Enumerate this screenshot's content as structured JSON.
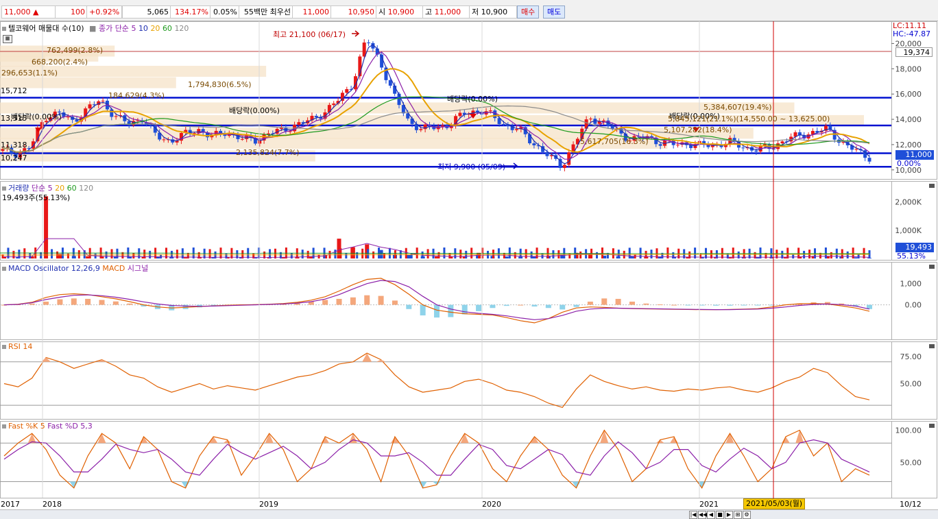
{
  "quote": {
    "price": "11,000",
    "change_arrow": "▲",
    "change": "100",
    "change_pct": "+0.92%",
    "volume": "5,065",
    "volume_ratio": "134.17%",
    "turnover": "0.05%",
    "amount": "55백만",
    "best_label": "최우선",
    "best_ask": "11,000",
    "best_bid": "10,950",
    "open_label": "시",
    "open": "10,900",
    "high_label": "고",
    "high": "11,000",
    "low_label": "저",
    "low": "10,900",
    "buy_label": "매수",
    "sell_label": "매도"
  },
  "price_panel": {
    "legend": [
      "텔코웨어 매물대 수(10)",
      "종가 단순",
      "5",
      "10",
      "20",
      "60",
      "120"
    ],
    "lc": "LC:11.11",
    "hc": "HC:-47.87",
    "max_label": "최고 21,100 (06/17)",
    "min_label": "최저 9,900 (05/09)",
    "dividend_label": "배당락(0.00%)",
    "left_prices": [
      "15,712",
      "13,515",
      "11,318",
      "10,247"
    ],
    "vp_labels": [
      "762,499(2.8%)",
      "668,200(2.4%)",
      "296,653(1.1%)",
      "1,794,830(6.5%)",
      "184,629(4.3%)",
      "5,384,607(19.4%)",
      "5,845,121(21.1%)(14,550.00 ~ 13,625.00)",
      "5,107,282(18.4%)",
      "2,135,824(7.7%)",
      "5,617,705(16.3%)"
    ],
    "right_top_value": "19,374",
    "current_value": "11,000",
    "current_pct": "0.00%",
    "axis_ticks": [
      "20,000",
      "18,000",
      "16,000",
      "14,000",
      "12,000",
      "10,000"
    ]
  },
  "volume_panel": {
    "legend": [
      "거래량",
      "단순",
      "5",
      "20",
      "60",
      "120"
    ],
    "value_label": "19,493주(55.13%)",
    "axis_ticks": [
      "2,000K",
      "1,000K"
    ],
    "current_value": "19,493",
    "current_pct": "55.13%"
  },
  "macd_panel": {
    "legend": [
      "MACD Oscillator 12,26,9",
      "MACD",
      "시그널"
    ],
    "axis_ticks": [
      "1,000",
      "0.00"
    ]
  },
  "rsi_panel": {
    "legend": [
      "RSI 14"
    ],
    "axis_ticks": [
      "75.00",
      "50.00"
    ]
  },
  "stoch_panel": {
    "legend": [
      "Fast %K 5",
      "Fast %D 5,3"
    ],
    "axis_ticks": [
      "100.00",
      "50.00"
    ]
  },
  "x_axis": {
    "labels": [
      "2017",
      "2018",
      "2019",
      "2020",
      "2021"
    ],
    "cursor_date": "2021/05/03(월)",
    "right_label": "10/12"
  },
  "colors": {
    "up": "#e81818",
    "down": "#1f4fd8",
    "ma5": "#1f2fb0",
    "ma10": "#8b1fa8",
    "ma20": "#e8a200",
    "ma60": "#1e9a1e",
    "ma120": "#8a8a8a",
    "orange_line": "#e06000",
    "band_fill": "#f6e3c8"
  },
  "chart_data": [
    {
      "type": "candlestick",
      "title": "텔코웨어 매물대 수(10)",
      "ylim": [
        9500,
        21000
      ],
      "x_range": [
        "2017",
        "2021-10-12"
      ],
      "price_series": [
        11500,
        11300,
        11800,
        14200,
        14500,
        13800,
        14800,
        15500,
        14300,
        13600,
        14100,
        12600,
        12300,
        12800,
        13200,
        12600,
        13000,
        12500,
        12300,
        12900,
        13100,
        13600,
        13900,
        14600,
        15500,
        16800,
        20400,
        18600,
        15800,
        13900,
        13200,
        13400,
        13600,
        14500,
        14700,
        14300,
        13500,
        13100,
        12100,
        11100,
        10300,
        12300,
        14200,
        13700,
        13000,
        12400,
        12600,
        12200,
        12000,
        12100,
        11900,
        12000,
        12200,
        11800,
        11600,
        11800,
        12400,
        12700,
        13000,
        13200,
        12200,
        11500,
        11000
      ],
      "max": {
        "value": 21100,
        "date": "06/17"
      },
      "min": {
        "value": 9900,
        "date": "05/09"
      },
      "horizontal_levels": [
        15712,
        13515,
        11318,
        10247
      ],
      "volume_profile": [
        {
          "volume": "762,499",
          "pct": 2.8
        },
        {
          "volume": "668,200",
          "pct": 2.4
        },
        {
          "volume": "296,653",
          "pct": 1.1
        },
        {
          "volume": "1,794,830",
          "pct": 6.5
        },
        {
          "volume": "184,629",
          "pct": 4.3
        },
        {
          "volume": "5,384,607",
          "pct": 19.4
        },
        {
          "volume": "5,845,121",
          "pct": 21.1,
          "range": "14,550.00 ~ 13,625.00"
        },
        {
          "volume": "5,107,282",
          "pct": 18.4
        },
        {
          "volume": "5,617,705",
          "pct": 16.3
        },
        {
          "volume": "2,135,824",
          "pct": 7.7
        }
      ],
      "last": 11000
    },
    {
      "type": "bar",
      "title": "거래량",
      "ylim": [
        0,
        2400000
      ],
      "values": [
        60000,
        50000,
        80000,
        2200000,
        160000,
        90000,
        80000,
        70000,
        60000,
        70000,
        50000,
        60000,
        50000,
        40000,
        45000,
        40000,
        50000,
        40000,
        35000,
        40000,
        50000,
        60000,
        80000,
        120000,
        700000,
        400000,
        500000,
        300000,
        150000,
        120000,
        80000,
        70000,
        60000,
        80000,
        200000,
        90000,
        70000,
        60000,
        80000,
        90000,
        150000,
        200000,
        160000,
        100000,
        80000,
        70000,
        60000,
        50000,
        50000,
        50000,
        45000,
        45000,
        50000,
        45000,
        40000,
        45000,
        60000,
        70000,
        90000,
        80000,
        60000,
        40000,
        19493
      ],
      "last": 19493
    },
    {
      "type": "line",
      "title": "MACD Oscillator 12,26,9",
      "ylim": [
        -1500,
        1700
      ],
      "oscillator": [
        0,
        20,
        60,
        150,
        260,
        300,
        280,
        230,
        160,
        60,
        -80,
        -200,
        -260,
        -200,
        -120,
        -50,
        0,
        20,
        30,
        40,
        60,
        100,
        150,
        230,
        280,
        350,
        450,
        420,
        200,
        -200,
        -500,
        -600,
        -580,
        -450,
        -300,
        -150,
        -50,
        0,
        -80,
        -150,
        -220,
        -100,
        150,
        300,
        280,
        150,
        60,
        20,
        0,
        -20,
        -30,
        -40,
        -40,
        -30,
        -20,
        -10,
        20,
        60,
        120,
        130,
        60,
        -80,
        -200
      ],
      "macd": [
        0,
        30,
        120,
        350,
        480,
        520,
        480,
        380,
        280,
        150,
        0,
        -100,
        -150,
        -120,
        -80,
        -50,
        -20,
        0,
        10,
        30,
        60,
        120,
        220,
        380,
        650,
        950,
        1200,
        1250,
        950,
        500,
        0,
        -250,
        -350,
        -420,
        -450,
        -480,
        -600,
        -750,
        -850,
        -650,
        -350,
        -150,
        -100,
        -120,
        -160,
        -180,
        -190,
        -200,
        -210,
        -220,
        -230,
        -230,
        -220,
        -200,
        -180,
        -100,
        0,
        50,
        60,
        40,
        -50,
        -150,
        -300
      ],
      "signal": [
        0,
        20,
        100,
        250,
        360,
        450,
        470,
        430,
        360,
        260,
        140,
        40,
        -30,
        -60,
        -70,
        -60,
        -40,
        -20,
        0,
        20,
        40,
        80,
        150,
        270,
        480,
        750,
        1000,
        1150,
        1100,
        850,
        400,
        0,
        -200,
        -330,
        -400,
        -450,
        -520,
        -620,
        -700,
        -650,
        -500,
        -300,
        -200,
        -160,
        -160,
        -170,
        -180,
        -190,
        -200,
        -210,
        -220,
        -225,
        -225,
        -215,
        -200,
        -160,
        -100,
        -30,
        20,
        40,
        10,
        -60,
        -200
      ]
    },
    {
      "type": "line",
      "title": "RSI 14",
      "ylim": [
        20,
        85
      ],
      "values": [
        50,
        47,
        55,
        74,
        70,
        64,
        68,
        72,
        66,
        58,
        55,
        47,
        42,
        46,
        50,
        45,
        48,
        46,
        44,
        48,
        52,
        56,
        58,
        62,
        68,
        70,
        78,
        72,
        58,
        47,
        42,
        44,
        46,
        52,
        54,
        50,
        44,
        42,
        38,
        32,
        28,
        45,
        58,
        52,
        48,
        45,
        47,
        44,
        43,
        45,
        44,
        46,
        47,
        44,
        42,
        46,
        52,
        56,
        64,
        60,
        48,
        38,
        35
      ],
      "reference_lines": [
        70,
        30
      ]
    },
    {
      "type": "line",
      "title": "Fast %K 5 / Fast %D 5,3",
      "ylim": [
        -3,
        108
      ],
      "k": [
        60,
        80,
        95,
        70,
        30,
        10,
        60,
        95,
        80,
        40,
        90,
        70,
        20,
        10,
        60,
        90,
        85,
        30,
        60,
        95,
        70,
        20,
        40,
        90,
        80,
        95,
        70,
        20,
        90,
        60,
        10,
        15,
        60,
        95,
        80,
        40,
        20,
        60,
        90,
        70,
        30,
        10,
        60,
        100,
        70,
        20,
        40,
        85,
        90,
        40,
        10,
        60,
        95,
        60,
        20,
        40,
        90,
        100,
        60,
        80,
        20,
        40,
        30
      ],
      "d": [
        55,
        70,
        82,
        80,
        60,
        35,
        35,
        55,
        78,
        70,
        65,
        70,
        55,
        35,
        30,
        55,
        78,
        65,
        55,
        65,
        75,
        60,
        40,
        50,
        70,
        85,
        80,
        60,
        60,
        65,
        50,
        30,
        30,
        55,
        78,
        70,
        45,
        40,
        55,
        70,
        62,
        35,
        30,
        60,
        82,
        65,
        40,
        50,
        70,
        70,
        45,
        35,
        55,
        72,
        60,
        40,
        50,
        80,
        85,
        80,
        55,
        45,
        35
      ],
      "reference_lines": [
        80,
        20
      ]
    }
  ]
}
